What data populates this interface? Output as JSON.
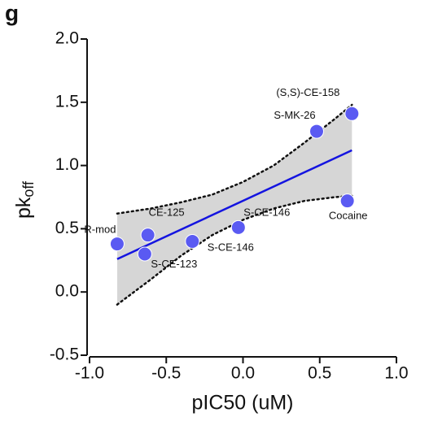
{
  "chart_data": {
    "type": "scatter",
    "panel_label": "g",
    "x_label": "pIC50 (uM)",
    "y_label": "pk",
    "y_label_sub": "off",
    "x": [
      -0.82,
      -0.62,
      -0.64,
      -0.33,
      -0.03,
      0.48,
      0.71,
      0.68
    ],
    "values": [
      0.38,
      0.45,
      0.3,
      0.4,
      0.51,
      1.27,
      1.41,
      0.72
    ],
    "point_labels": [
      "R-mod",
      "CE-125",
      "S-CE-123",
      "S-CE-146",
      "S-CE-146",
      "S-MK-26",
      "(S,S)-CE-158",
      "Cocaine"
    ],
    "color": "#5a5af2",
    "fit": {
      "color": "#1414e0",
      "x": [
        -0.82,
        0.71
      ],
      "y": [
        0.26,
        1.12
      ]
    },
    "band": {
      "color": "#d6d6d6",
      "x": [
        -0.82,
        -0.6,
        -0.4,
        -0.2,
        0,
        0.2,
        0.4,
        0.6,
        0.71
      ],
      "lower": [
        -0.1,
        0.1,
        0.29,
        0.45,
        0.57,
        0.66,
        0.72,
        0.75,
        0.76
      ],
      "upper": [
        0.62,
        0.66,
        0.71,
        0.77,
        0.87,
        1.0,
        1.18,
        1.37,
        1.48
      ]
    },
    "xlim": [
      -1.0,
      1.0
    ],
    "ylim": [
      -0.5,
      2.0
    ],
    "xticks": [
      {
        "value": -1.0,
        "label": "-1.0"
      },
      -0.5,
      {
        "value": 0,
        "label": "0.0"
      },
      0.5,
      {
        "value": 1.0,
        "label": "1.0"
      }
    ],
    "yticks": [
      -0.5,
      {
        "value": 0,
        "label": "0.0"
      },
      0.5,
      {
        "value": 1.0,
        "label": "1.0"
      },
      1.5,
      {
        "value": 2.0,
        "label": "2.0"
      }
    ]
  }
}
